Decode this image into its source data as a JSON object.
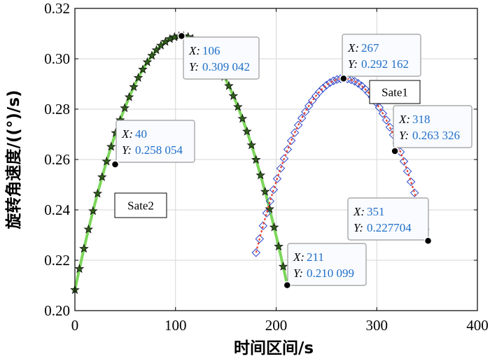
{
  "chart_data": {
    "type": "scatter",
    "xlabel": "时间区间/s",
    "ylabel": "旋转角速度/((°)/s)",
    "xlim": [
      0,
      400
    ],
    "ylim": [
      0.2,
      0.32
    ],
    "xticks": [
      "0",
      "100",
      "200",
      "300",
      "400"
    ],
    "yticks": [
      "0.20",
      "0.22",
      "0.24",
      "0.26",
      "0.28",
      "0.30",
      "0.32"
    ],
    "grid": true,
    "series": [
      {
        "name": "Sate2",
        "x_range": [
          0,
          211
        ],
        "peak_x": 106,
        "peak_y": 0.309042,
        "end_y": 0.210099,
        "line_color": "#7cd65a",
        "marker": "star"
      },
      {
        "name": "Sate1",
        "x_range": [
          180,
          351
        ],
        "peak_x": 267,
        "peak_y": 0.292162,
        "end_y": 0.227704,
        "line_color": "#e8402e",
        "marker": "diamond",
        "marker_color": "#2b45c8"
      }
    ],
    "datatips": [
      {
        "x": 106,
        "y": 0.309042,
        "x_text": "106",
        "y_text": "0.309 042"
      },
      {
        "x": 40,
        "y": 0.258054,
        "x_text": "40",
        "y_text": "0.258 054"
      },
      {
        "x": 211,
        "y": 0.210099,
        "x_text": "211",
        "y_text": " 0.210 099"
      },
      {
        "x": 267,
        "y": 0.292162,
        "x_text": "267",
        "y_text": "0.292 162"
      },
      {
        "x": 318,
        "y": 0.263326,
        "x_text": "318",
        "y_text": "0.263 326"
      },
      {
        "x": 351,
        "y": 0.227704,
        "x_text": "351",
        "y_text": "0.227704"
      }
    ],
    "tip_x_key": "X:",
    "tip_y_key": "Y:",
    "legends": [
      {
        "label": "Sate2"
      },
      {
        "label": "Sate1"
      }
    ]
  }
}
